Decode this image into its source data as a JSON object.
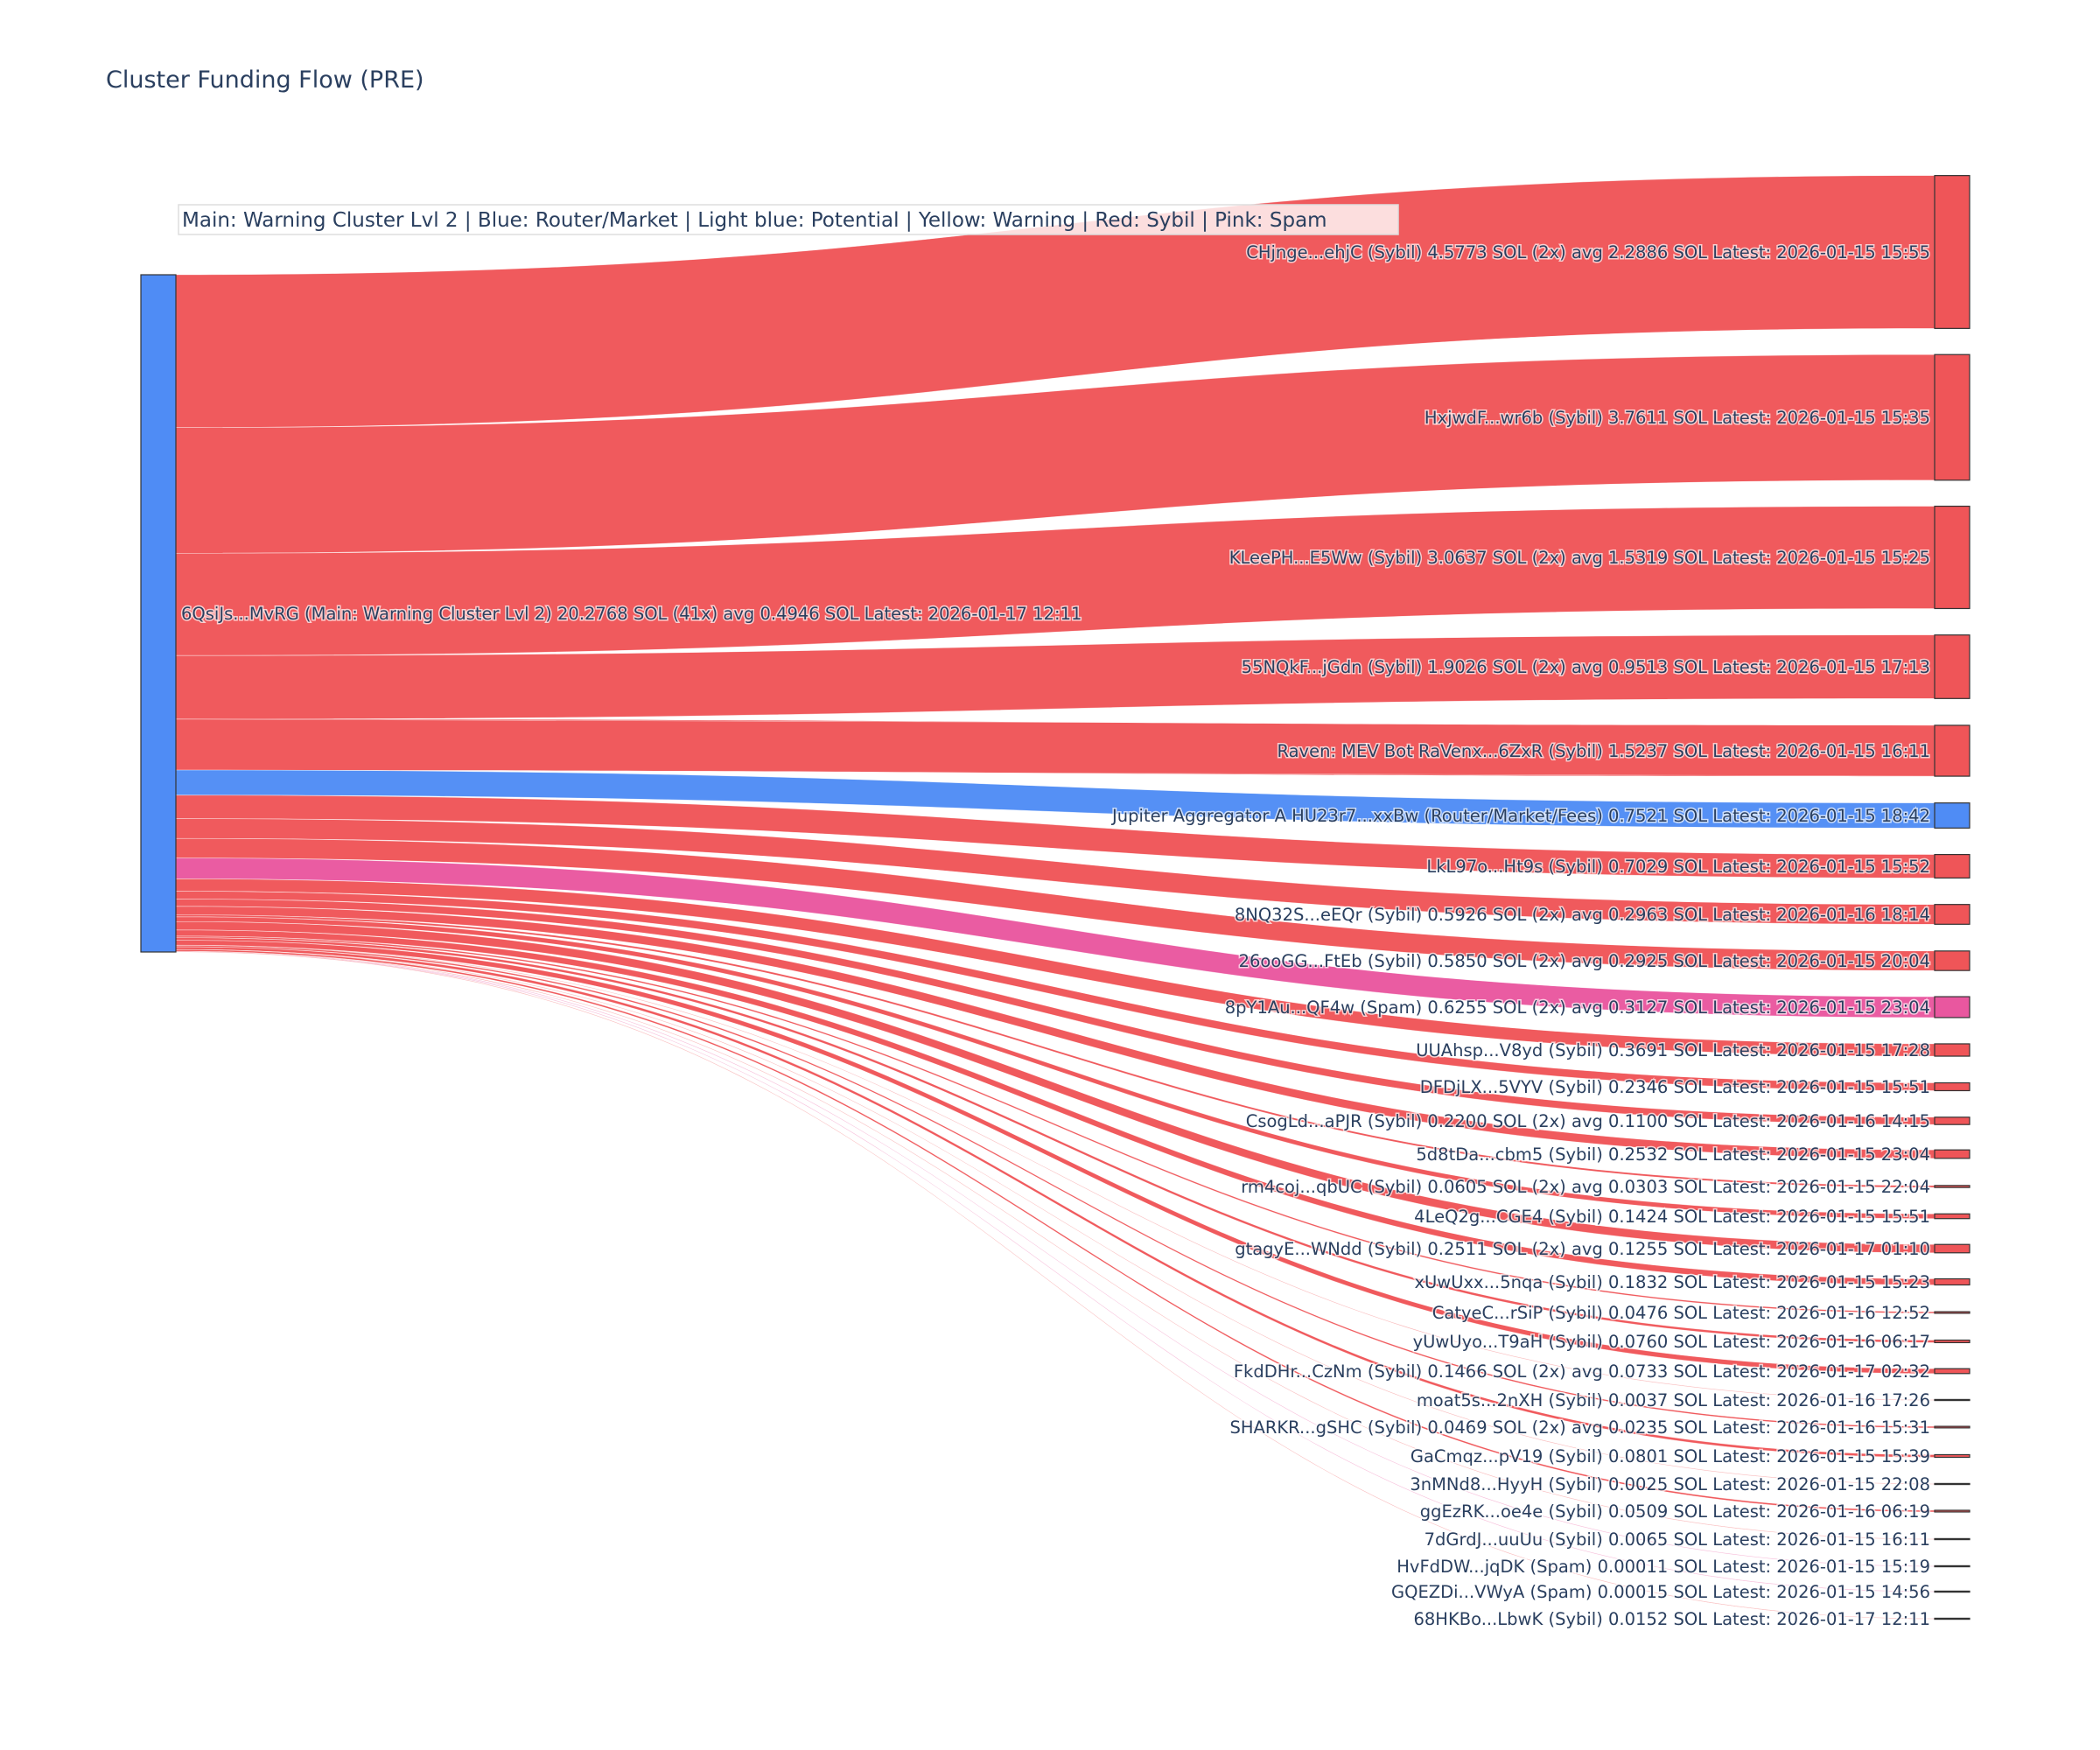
{
  "chart_data": {
    "type": "sankey",
    "title": "Cluster Funding Flow (PRE)",
    "annotation": "Main: Warning Cluster Lvl 2  |  Blue: Router/Market | Light blue: Potential | Yellow: Warning | Red: Sybil | Pink: Spam",
    "colors": {
      "sybil": "#ef5558",
      "router": "#4f8cf5",
      "spam": "#e9579f",
      "main": "#4f8cf5",
      "node_border": "#333333"
    },
    "source": {
      "label": "6QsiJs...MvRG (Main: Warning Cluster Lvl 2) 20.2768 SOL (41x) avg 0.4946 SOL Latest: 2026-01-17 12:11",
      "category": "main",
      "value": 20.2768
    },
    "targets": [
      {
        "label": "CHjnge...ehjC (Sybil) 4.5773 SOL (2x) avg 2.2886 SOL Latest: 2026-01-15 15:55",
        "value": 4.5773,
        "category": "sybil"
      },
      {
        "label": "HxjwdF...wr6b (Sybil) 3.7611 SOL Latest: 2026-01-15 15:35",
        "value": 3.7611,
        "category": "sybil"
      },
      {
        "label": "KLeePH...E5Ww (Sybil) 3.0637 SOL (2x) avg 1.5319 SOL Latest: 2026-01-15 15:25",
        "value": 3.0637,
        "category": "sybil"
      },
      {
        "label": "55NQkF...jGdn (Sybil) 1.9026 SOL (2x) avg 0.9513 SOL Latest: 2026-01-15 17:13",
        "value": 1.9026,
        "category": "sybil"
      },
      {
        "label": "Raven: MEV Bot RaVenx...6ZxR (Sybil) 1.5237 SOL Latest: 2026-01-15 16:11",
        "value": 1.5237,
        "category": "sybil"
      },
      {
        "label": "Jupiter Aggregator A HU23r7...xxBw (Router/Market/Fees) 0.7521 SOL Latest: 2026-01-15 18:42",
        "value": 0.7521,
        "category": "router"
      },
      {
        "label": "LkL97o...Ht9s (Sybil) 0.7029 SOL Latest: 2026-01-15 15:52",
        "value": 0.7029,
        "category": "sybil"
      },
      {
        "label": "8NQ32S...eEQr (Sybil) 0.5926 SOL (2x) avg 0.2963 SOL Latest: 2026-01-16 18:14",
        "value": 0.5926,
        "category": "sybil"
      },
      {
        "label": "26ooGG...FtEb (Sybil) 0.5850 SOL (2x) avg 0.2925 SOL Latest: 2026-01-15 20:04",
        "value": 0.585,
        "category": "sybil"
      },
      {
        "label": "8pY1Au...QF4w (Spam) 0.6255 SOL (2x) avg 0.3127 SOL Latest: 2026-01-15 23:04",
        "value": 0.6255,
        "category": "spam"
      },
      {
        "label": "UUAhsp...V8yd (Sybil) 0.3691 SOL Latest: 2026-01-15 17:28",
        "value": 0.3691,
        "category": "sybil"
      },
      {
        "label": "DFDjLX...5VYV (Sybil) 0.2346 SOL Latest: 2026-01-15 15:51",
        "value": 0.2346,
        "category": "sybil"
      },
      {
        "label": "CsogLd...aPJR (Sybil) 0.2200 SOL (2x) avg 0.1100 SOL Latest: 2026-01-16 14:15",
        "value": 0.22,
        "category": "sybil"
      },
      {
        "label": "5d8tDa...cbm5 (Sybil) 0.2532 SOL Latest: 2026-01-15 23:04",
        "value": 0.2532,
        "category": "sybil"
      },
      {
        "label": "rm4coj...qbUC (Sybil) 0.0605 SOL (2x) avg 0.0303 SOL Latest: 2026-01-15 22:04",
        "value": 0.0605,
        "category": "sybil"
      },
      {
        "label": "4LeQ2g...CGE4 (Sybil) 0.1424 SOL Latest: 2026-01-15 15:51",
        "value": 0.1424,
        "category": "sybil"
      },
      {
        "label": "gtagyE...WNdd (Sybil) 0.2511 SOL (2x) avg 0.1255 SOL Latest: 2026-01-17 01:10",
        "value": 0.2511,
        "category": "sybil"
      },
      {
        "label": "xUwUxx...5nqa (Sybil) 0.1832 SOL Latest: 2026-01-15 15:23",
        "value": 0.1832,
        "category": "sybil"
      },
      {
        "label": "CatyeC...rSiP (Sybil) 0.0476 SOL Latest: 2026-01-16 12:52",
        "value": 0.0476,
        "category": "sybil"
      },
      {
        "label": "yUwUyo...T9aH (Sybil) 0.0760 SOL Latest: 2026-01-16 06:17",
        "value": 0.076,
        "category": "sybil"
      },
      {
        "label": "FkdDHr...CzNm (Sybil) 0.1466 SOL (2x) avg 0.0733 SOL Latest: 2026-01-17 02:32",
        "value": 0.1466,
        "category": "sybil"
      },
      {
        "label": "moat5s...2nXH (Sybil) 0.0037 SOL Latest: 2026-01-16 17:26",
        "value": 0.0037,
        "category": "sybil"
      },
      {
        "label": "SHARKR...gSHC (Sybil) 0.0469 SOL (2x) avg 0.0235 SOL Latest: 2026-01-16 15:31",
        "value": 0.0469,
        "category": "sybil"
      },
      {
        "label": "GaCmqz...pV19 (Sybil) 0.0801 SOL Latest: 2026-01-15 15:39",
        "value": 0.0801,
        "category": "sybil"
      },
      {
        "label": "3nMNd8...HyyH (Sybil) 0.0025 SOL Latest: 2026-01-15 22:08",
        "value": 0.0025,
        "category": "sybil"
      },
      {
        "label": "ggEzRK...oe4e (Sybil) 0.0509 SOL Latest: 2026-01-16 06:19",
        "value": 0.0509,
        "category": "sybil"
      },
      {
        "label": "7dGrdJ...uuUu (Sybil) 0.0065 SOL Latest: 2026-01-15 16:11",
        "value": 0.0065,
        "category": "sybil"
      },
      {
        "label": "HvFdDW...jqDK (Spam) 0.00011 SOL Latest: 2026-01-15 15:19",
        "value": 0.00011,
        "category": "spam"
      },
      {
        "label": "GQEZDi...VWyA (Spam) 0.00015 SOL Latest: 2026-01-15 14:56",
        "value": 0.00015,
        "category": "spam"
      },
      {
        "label": "68HKBo...LbwK (Sybil) 0.0152 SOL Latest: 2026-01-17 12:11",
        "value": 0.0152,
        "category": "sybil"
      }
    ]
  }
}
